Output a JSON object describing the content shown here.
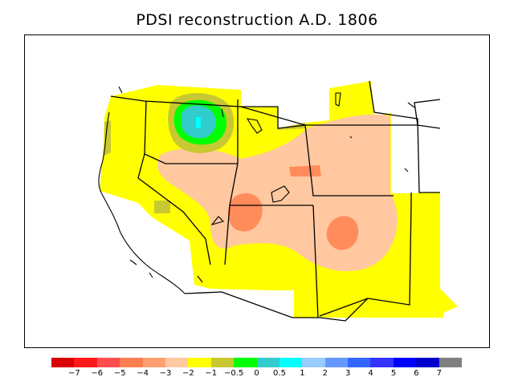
{
  "title": "PDSI reconstruction A.D. 1806",
  "legend": {
    "colors": [
      "#d80000",
      "#ff1a1a",
      "#ff4d4d",
      "#ff7f50",
      "#ffa070",
      "#ffc8a0",
      "#ffff00",
      "#c8c832",
      "#00ff00",
      "#33cccc",
      "#00ffff",
      "#99ccff",
      "#6699ff",
      "#3366ff",
      "#3333ff",
      "#0000ff",
      "#0000cc",
      "#808080"
    ],
    "labels": [
      "−7",
      "−6",
      "−5",
      "−4",
      "−3",
      "−2",
      "−1",
      "−0.5",
      "0",
      "0.5",
      "1",
      "2",
      "3",
      "4",
      "5",
      "6",
      "7"
    ]
  },
  "palette": {
    "yellow": "#ffff00",
    "peach": "#ffc8a0",
    "salmon": "#ff8c5a",
    "olive": "#c8c832",
    "green": "#00ff00",
    "teal": "#33cccc",
    "cyan": "#00ffff"
  }
}
